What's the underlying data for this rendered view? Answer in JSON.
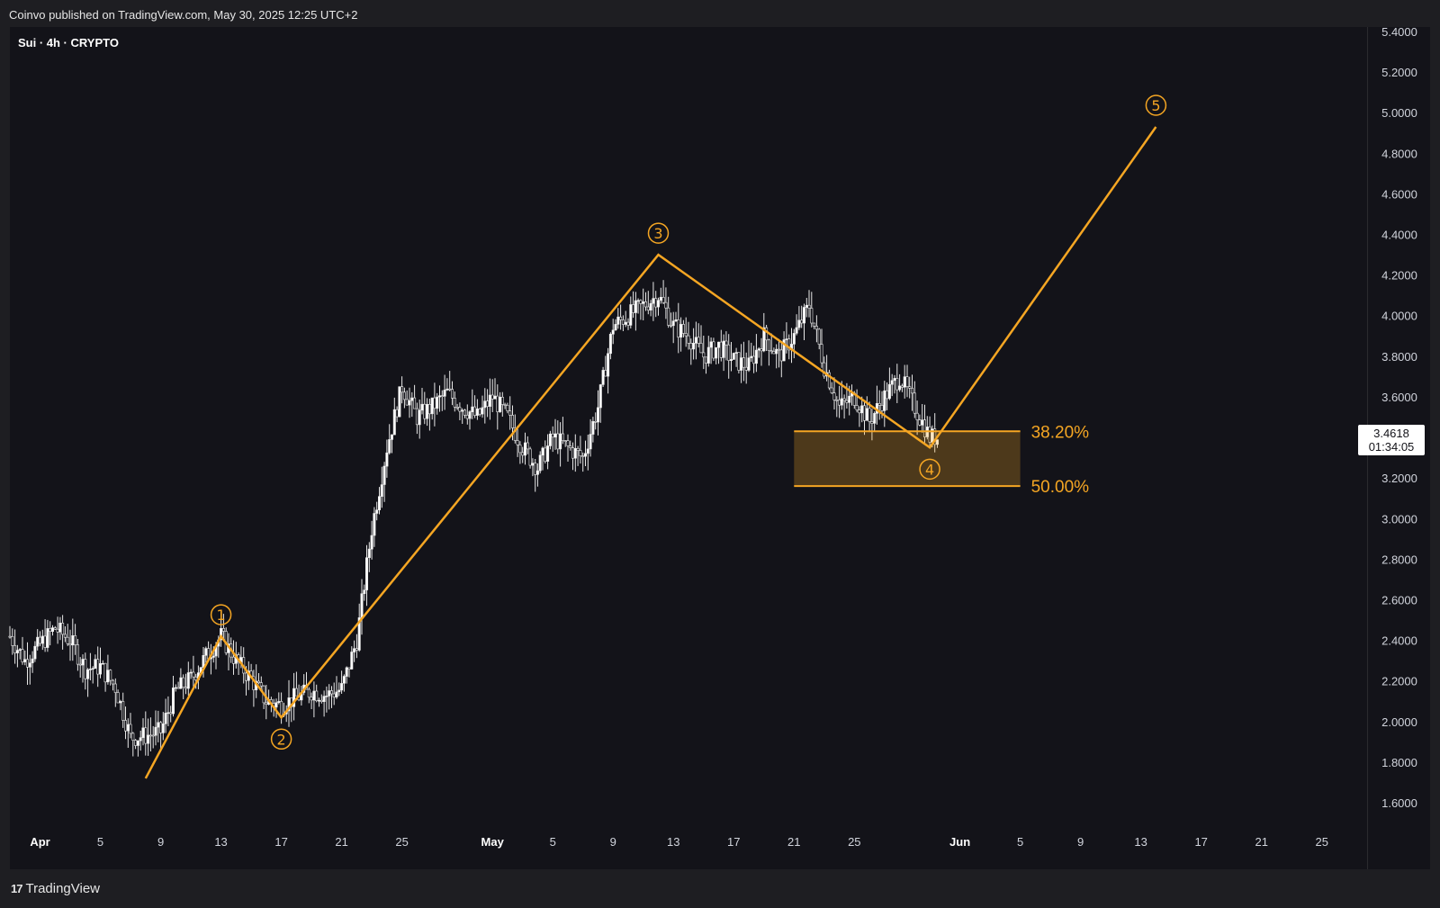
{
  "header": {
    "published": "Coinvo published on TradingView.com, May 30, 2025 12:25 UTC+2"
  },
  "symbol": "Sui · 4h · CRYPTO",
  "brand": "TradingView",
  "last_price": {
    "value": "3.4618",
    "countdown": "01:34:05"
  },
  "colors": {
    "wave": "#f5a623",
    "candle": "#e8e8e8",
    "zone": "#f5a623",
    "background": "#131319"
  },
  "chart_data": {
    "type": "candlestick",
    "title": "Sui · 4h · CRYPTO",
    "xlabel": "",
    "ylabel": "",
    "ylim": [
      1.5,
      5.4
    ],
    "x_range": [
      "2025-03-30",
      "2025-06-28"
    ],
    "y_ticks": [
      "5.4000",
      "5.2000",
      "5.0000",
      "4.8000",
      "4.6000",
      "4.4000",
      "4.2000",
      "4.0000",
      "3.8000",
      "3.6000",
      "3.4000",
      "3.2000",
      "3.0000",
      "2.8000",
      "2.6000",
      "2.4000",
      "2.2000",
      "2.0000",
      "1.8000",
      "1.6000"
    ],
    "x_ticks": [
      {
        "label": "Apr",
        "date": "2025-04-01"
      },
      {
        "label": "5",
        "date": "2025-04-05"
      },
      {
        "label": "9",
        "date": "2025-04-09"
      },
      {
        "label": "13",
        "date": "2025-04-13"
      },
      {
        "label": "17",
        "date": "2025-04-17"
      },
      {
        "label": "21",
        "date": "2025-04-21"
      },
      {
        "label": "25",
        "date": "2025-04-25"
      },
      {
        "label": "May",
        "date": "2025-05-01"
      },
      {
        "label": "5",
        "date": "2025-05-05"
      },
      {
        "label": "9",
        "date": "2025-05-09"
      },
      {
        "label": "13",
        "date": "2025-05-13"
      },
      {
        "label": "17",
        "date": "2025-05-17"
      },
      {
        "label": "21",
        "date": "2025-05-21"
      },
      {
        "label": "25",
        "date": "2025-05-25"
      },
      {
        "label": "Jun",
        "date": "2025-06-01"
      },
      {
        "label": "5",
        "date": "2025-06-05"
      },
      {
        "label": "9",
        "date": "2025-06-09"
      },
      {
        "label": "13",
        "date": "2025-06-13"
      },
      {
        "label": "17",
        "date": "2025-06-17"
      },
      {
        "label": "21",
        "date": "2025-06-21"
      },
      {
        "label": "25",
        "date": "2025-06-25"
      }
    ],
    "price_path": [
      [
        "2025-03-30",
        2.42
      ],
      [
        "2025-03-31",
        2.3
      ],
      [
        "2025-04-01",
        2.38
      ],
      [
        "2025-04-02",
        2.46
      ],
      [
        "2025-04-03",
        2.4
      ],
      [
        "2025-04-04",
        2.26
      ],
      [
        "2025-04-05",
        2.27
      ],
      [
        "2025-04-06",
        2.17
      ],
      [
        "2025-04-07",
        1.92
      ],
      [
        "2025-04-08",
        1.93
      ],
      [
        "2025-04-09",
        1.95
      ],
      [
        "2025-04-10",
        2.15
      ],
      [
        "2025-04-11",
        2.21
      ],
      [
        "2025-04-12",
        2.32
      ],
      [
        "2025-04-13",
        2.42
      ],
      [
        "2025-04-14",
        2.3
      ],
      [
        "2025-04-15",
        2.21
      ],
      [
        "2025-04-16",
        2.1
      ],
      [
        "2025-04-17",
        2.08
      ],
      [
        "2025-04-18",
        2.12
      ],
      [
        "2025-04-19",
        2.15
      ],
      [
        "2025-04-20",
        2.13
      ],
      [
        "2025-04-21",
        2.16
      ],
      [
        "2025-04-22",
        2.4
      ],
      [
        "2025-04-23",
        2.95
      ],
      [
        "2025-04-24",
        3.35
      ],
      [
        "2025-04-25",
        3.65
      ],
      [
        "2025-04-26",
        3.5
      ],
      [
        "2025-04-27",
        3.55
      ],
      [
        "2025-04-28",
        3.62
      ],
      [
        "2025-04-29",
        3.55
      ],
      [
        "2025-04-30",
        3.5
      ],
      [
        "2025-05-01",
        3.6
      ],
      [
        "2025-05-02",
        3.5
      ],
      [
        "2025-05-03",
        3.35
      ],
      [
        "2025-05-04",
        3.25
      ],
      [
        "2025-05-05",
        3.4
      ],
      [
        "2025-05-06",
        3.35
      ],
      [
        "2025-05-07",
        3.3
      ],
      [
        "2025-05-08",
        3.55
      ],
      [
        "2025-05-09",
        3.95
      ],
      [
        "2025-05-10",
        4.0
      ],
      [
        "2025-05-11",
        4.05
      ],
      [
        "2025-05-12",
        4.1
      ],
      [
        "2025-05-13",
        3.95
      ],
      [
        "2025-05-14",
        3.9
      ],
      [
        "2025-05-15",
        3.8
      ],
      [
        "2025-05-16",
        3.85
      ],
      [
        "2025-05-17",
        3.78
      ],
      [
        "2025-05-18",
        3.75
      ],
      [
        "2025-05-19",
        3.9
      ],
      [
        "2025-05-20",
        3.8
      ],
      [
        "2025-05-21",
        3.9
      ],
      [
        "2025-05-22",
        4.05
      ],
      [
        "2025-05-23",
        3.75
      ],
      [
        "2025-05-24",
        3.55
      ],
      [
        "2025-05-25",
        3.6
      ],
      [
        "2025-05-26",
        3.48
      ],
      [
        "2025-05-27",
        3.6
      ],
      [
        "2025-05-28",
        3.7
      ],
      [
        "2025-05-29",
        3.55
      ],
      [
        "2025-05-30",
        3.4
      ]
    ],
    "elliott_waves": [
      {
        "label": "①",
        "date": "2025-04-13",
        "price": 2.42
      },
      {
        "label": "②",
        "date": "2025-04-17",
        "price": 2.02
      },
      {
        "label": "③",
        "date": "2025-05-12",
        "price": 4.3
      },
      {
        "label": "④",
        "date": "2025-05-30",
        "price": 3.35
      },
      {
        "label": "⑤",
        "date": "2025-06-14",
        "price": 4.93
      }
    ],
    "wave_start": {
      "date": "2025-04-08",
      "price": 1.72
    },
    "fib_zone": {
      "start": "2025-05-21",
      "end": "2025-06-05",
      "levels": [
        {
          "label": "38.20%",
          "price": 3.43
        },
        {
          "label": "50.00%",
          "price": 3.16
        }
      ]
    }
  }
}
